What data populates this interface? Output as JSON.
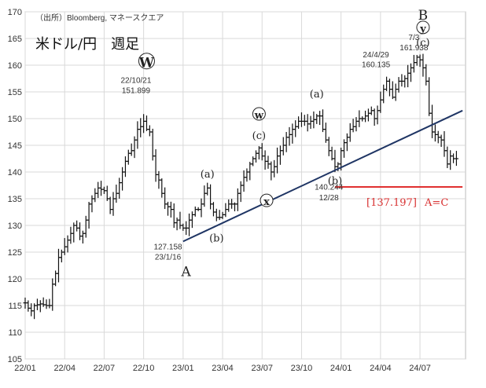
{
  "chart_data": {
    "type": "ohlc",
    "title": "米ドル/円　週足",
    "source": "（出所）Bloomberg, マネースクエア",
    "ylim": [
      105,
      170
    ],
    "yticks": [
      105,
      110,
      115,
      120,
      125,
      130,
      135,
      140,
      145,
      150,
      155,
      160,
      165,
      170
    ],
    "xlim": [
      0,
      145
    ],
    "xticks": [
      {
        "x": 0,
        "label": "22/01"
      },
      {
        "x": 13,
        "label": "22/04"
      },
      {
        "x": 26,
        "label": "22/07"
      },
      {
        "x": 39,
        "label": "22/10"
      },
      {
        "x": 52,
        "label": "23/01"
      },
      {
        "x": 65,
        "label": "23/04"
      },
      {
        "x": 78,
        "label": "23/07"
      },
      {
        "x": 91,
        "label": "23/10"
      },
      {
        "x": 104,
        "label": "24/01"
      },
      {
        "x": 117,
        "label": "24/04"
      },
      {
        "x": 130,
        "label": "24/07"
      }
    ],
    "grid": {
      "horizontal": true,
      "vertical": true
    },
    "anchors": [
      [
        0,
        115.5
      ],
      [
        1,
        114.5
      ],
      [
        2,
        114.0
      ],
      [
        3,
        115.0
      ],
      [
        5,
        115.3
      ],
      [
        7,
        115.0
      ],
      [
        8,
        115.0
      ],
      [
        9,
        119
      ],
      [
        10,
        121
      ],
      [
        11,
        124
      ],
      [
        12,
        125
      ],
      [
        13,
        126
      ],
      [
        15,
        128.5
      ],
      [
        16,
        130
      ],
      [
        17,
        129.5
      ],
      [
        18,
        128
      ],
      [
        19,
        128.5
      ],
      [
        20,
        131
      ],
      [
        21,
        134
      ],
      [
        23,
        136
      ],
      [
        24,
        137
      ],
      [
        26,
        136.5
      ],
      [
        27,
        135
      ],
      [
        28,
        133
      ],
      [
        29,
        135
      ],
      [
        30,
        136
      ],
      [
        31,
        138
      ],
      [
        33,
        142
      ],
      [
        34,
        143.5
      ],
      [
        35,
        144
      ],
      [
        36,
        146
      ],
      [
        37,
        148
      ],
      [
        38,
        148.5
      ],
      [
        39,
        149.5
      ],
      [
        40,
        148
      ],
      [
        41,
        147.5
      ],
      [
        42,
        143
      ],
      [
        43,
        139.5
      ],
      [
        44,
        138.5
      ],
      [
        45,
        136
      ],
      [
        46,
        134
      ],
      [
        48,
        133
      ],
      [
        49,
        130.5
      ],
      [
        50,
        131
      ],
      [
        51,
        130
      ],
      [
        52,
        129.5
      ],
      [
        53,
        129.5
      ],
      [
        54,
        131
      ],
      [
        55,
        132
      ],
      [
        56,
        133
      ],
      [
        57,
        133
      ],
      [
        58,
        134
      ],
      [
        59,
        136
      ],
      [
        60,
        137
      ],
      [
        61,
        134
      ],
      [
        62,
        132.5
      ],
      [
        63,
        131.5
      ],
      [
        64,
        131.5
      ],
      [
        65,
        132
      ],
      [
        67,
        134
      ],
      [
        69,
        134
      ],
      [
        70,
        136
      ],
      [
        71,
        137.5
      ],
      [
        72,
        139
      ],
      [
        73,
        140
      ],
      [
        74,
        141.5
      ],
      [
        75,
        142.5
      ],
      [
        76,
        143.5
      ],
      [
        77,
        144.5
      ],
      [
        78,
        143
      ],
      [
        79,
        142
      ],
      [
        80,
        141.5
      ],
      [
        81,
        140
      ],
      [
        82,
        141
      ],
      [
        83,
        143
      ],
      [
        84,
        144
      ],
      [
        85,
        145
      ],
      [
        86,
        146.5
      ],
      [
        87,
        147
      ],
      [
        88,
        148
      ],
      [
        89,
        148.5
      ],
      [
        90,
        149.5
      ],
      [
        91,
        149.5
      ],
      [
        92,
        149.5
      ],
      [
        93,
        149
      ],
      [
        94,
        149.5
      ],
      [
        95,
        149.8
      ],
      [
        96,
        150.5
      ],
      [
        97,
        150.5
      ],
      [
        98,
        148
      ],
      [
        99,
        146
      ],
      [
        100,
        144
      ],
      [
        101,
        142.5
      ],
      [
        102,
        141
      ],
      [
        103,
        141.5
      ],
      [
        104,
        144
      ],
      [
        105,
        145.5
      ],
      [
        106,
        146.5
      ],
      [
        107,
        148
      ],
      [
        108,
        148.5
      ],
      [
        109,
        149.5
      ],
      [
        110,
        150
      ],
      [
        111,
        150
      ],
      [
        112,
        150.5
      ],
      [
        113,
        151
      ],
      [
        114,
        151.5
      ],
      [
        115,
        150
      ],
      [
        116,
        151.5
      ],
      [
        117,
        153.5
      ],
      [
        118,
        155.5
      ],
      [
        119,
        157
      ],
      [
        120,
        155.5
      ],
      [
        121,
        154
      ],
      [
        122,
        155.5
      ],
      [
        123,
        157
      ],
      [
        124,
        157
      ],
      [
        125,
        157.5
      ],
      [
        126,
        158.5
      ],
      [
        127,
        159.5
      ],
      [
        128,
        160.5
      ],
      [
        129,
        161.5
      ],
      [
        130,
        161
      ],
      [
        131,
        159.5
      ],
      [
        132,
        157
      ],
      [
        133,
        151
      ],
      [
        134,
        147.5
      ],
      [
        135,
        147
      ],
      [
        136,
        146.5
      ],
      [
        137,
        146
      ],
      [
        138,
        144
      ],
      [
        139,
        141.5
      ],
      [
        140,
        143
      ],
      [
        141,
        142.5
      ],
      [
        142,
        142.5
      ]
    ],
    "trendline": [
      [
        52,
        127
      ],
      [
        144,
        151.5
      ]
    ],
    "target_line": {
      "value": 137.197,
      "x_from": 102,
      "x_to": 144,
      "color": "#e03030"
    },
    "annotations": [
      {
        "text": "22/10/21",
        "x": 36.5,
        "y": 156.7,
        "kind": "date"
      },
      {
        "text": "151.899",
        "x": 36.5,
        "y": 154.8,
        "kind": "date"
      },
      {
        "text": "W",
        "x": 40.0,
        "y": 159.6,
        "kind": "circled-big"
      },
      {
        "text": "127.158",
        "x": 47.0,
        "y": 125.5,
        "kind": "date"
      },
      {
        "text": "23/1/16",
        "x": 47.0,
        "y": 123.6,
        "kind": "date"
      },
      {
        "text": "A",
        "x": 53.0,
        "y": 120.5,
        "kind": "bigwave"
      },
      {
        "text": "(a)",
        "x": 60.0,
        "y": 139.0,
        "kind": "wave"
      },
      {
        "text": "(b)",
        "x": 63.0,
        "y": 127.0,
        "kind": "wave"
      },
      {
        "text": "w",
        "x": 77.0,
        "y": 150.0,
        "kind": "circled"
      },
      {
        "text": "(c)",
        "x": 77.0,
        "y": 146.2,
        "kind": "wave"
      },
      {
        "text": "x",
        "x": 79.5,
        "y": 133.8,
        "kind": "circled"
      },
      {
        "text": "(a)",
        "x": 96.0,
        "y": 154.0,
        "kind": "wave"
      },
      {
        "text": "140.244",
        "x": 100.0,
        "y": 136.7,
        "kind": "date"
      },
      {
        "text": "12/28",
        "x": 100.0,
        "y": 134.7,
        "kind": "date"
      },
      {
        "text": "(b)",
        "x": 102.0,
        "y": 137.7,
        "kind": "wave"
      },
      {
        "text": "24/4/29",
        "x": 115.5,
        "y": 161.5,
        "kind": "date"
      },
      {
        "text": "160.135",
        "x": 115.5,
        "y": 159.6,
        "kind": "date"
      },
      {
        "text": "7/3",
        "x": 128.0,
        "y": 164.7,
        "kind": "date"
      },
      {
        "text": "161.938",
        "x": 128.0,
        "y": 162.8,
        "kind": "date"
      },
      {
        "text": "B",
        "x": 131.0,
        "y": 168.5,
        "kind": "bigwave"
      },
      {
        "text": "y",
        "x": 131.0,
        "y": 166.2,
        "kind": "circled"
      },
      {
        "text": "(c)",
        "x": 131.0,
        "y": 163.6,
        "kind": "wave"
      }
    ],
    "target_label": {
      "price": "[137.197]",
      "eq": "A=C"
    }
  }
}
